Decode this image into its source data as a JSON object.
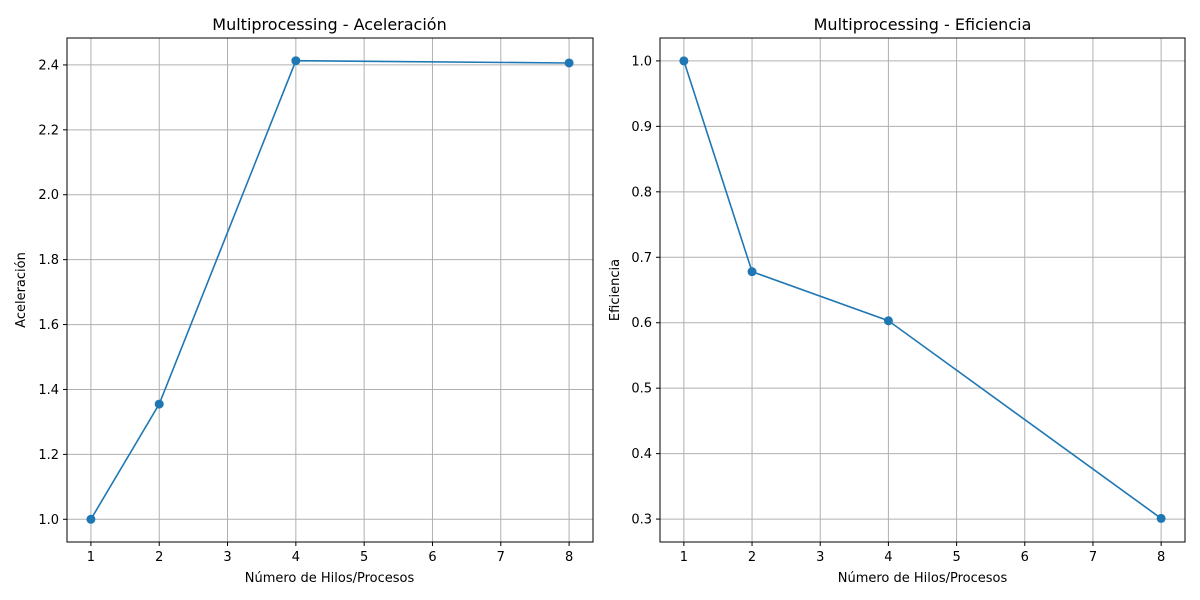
{
  "chart_data": [
    {
      "type": "line",
      "title": "Multiprocessing - Aceleración",
      "xlabel": "Número de Hilos/Procesos",
      "ylabel": "Aceleración",
      "x": [
        1,
        2,
        4,
        8
      ],
      "series": [
        {
          "values": [
            1.0,
            1.355,
            2.413,
            2.406
          ],
          "color": "#1f77b4",
          "marker": "circle"
        }
      ],
      "xlim": [
        0.65,
        8.35
      ],
      "ylim": [
        0.93,
        2.483
      ],
      "xticks": [
        1,
        2,
        3,
        4,
        5,
        6,
        7,
        8
      ],
      "yticks": [
        1.0,
        1.2,
        1.4,
        1.6,
        1.8,
        2.0,
        2.2,
        2.4
      ],
      "yticklabels": [
        "1.0",
        "1.2",
        "1.4",
        "1.6",
        "1.8",
        "2.0",
        "2.2",
        "2.4"
      ],
      "grid": true
    },
    {
      "type": "line",
      "title": "Multiprocessing - Eficiencia",
      "xlabel": "Número de Hilos/Procesos",
      "ylabel": "Eficiencia",
      "x": [
        1,
        2,
        4,
        8
      ],
      "series": [
        {
          "values": [
            1.0,
            0.678,
            0.603,
            0.301
          ],
          "color": "#1f77b4",
          "marker": "circle"
        }
      ],
      "xlim": [
        0.65,
        8.35
      ],
      "ylim": [
        0.265,
        1.035
      ],
      "xticks": [
        1,
        2,
        3,
        4,
        5,
        6,
        7,
        8
      ],
      "yticks": [
        0.3,
        0.4,
        0.5,
        0.6,
        0.7,
        0.8,
        0.9,
        1.0
      ],
      "yticklabels": [
        "0.3",
        "0.4",
        "0.5",
        "0.6",
        "0.7",
        "0.8",
        "0.9",
        "1.0"
      ],
      "grid": true
    }
  ]
}
